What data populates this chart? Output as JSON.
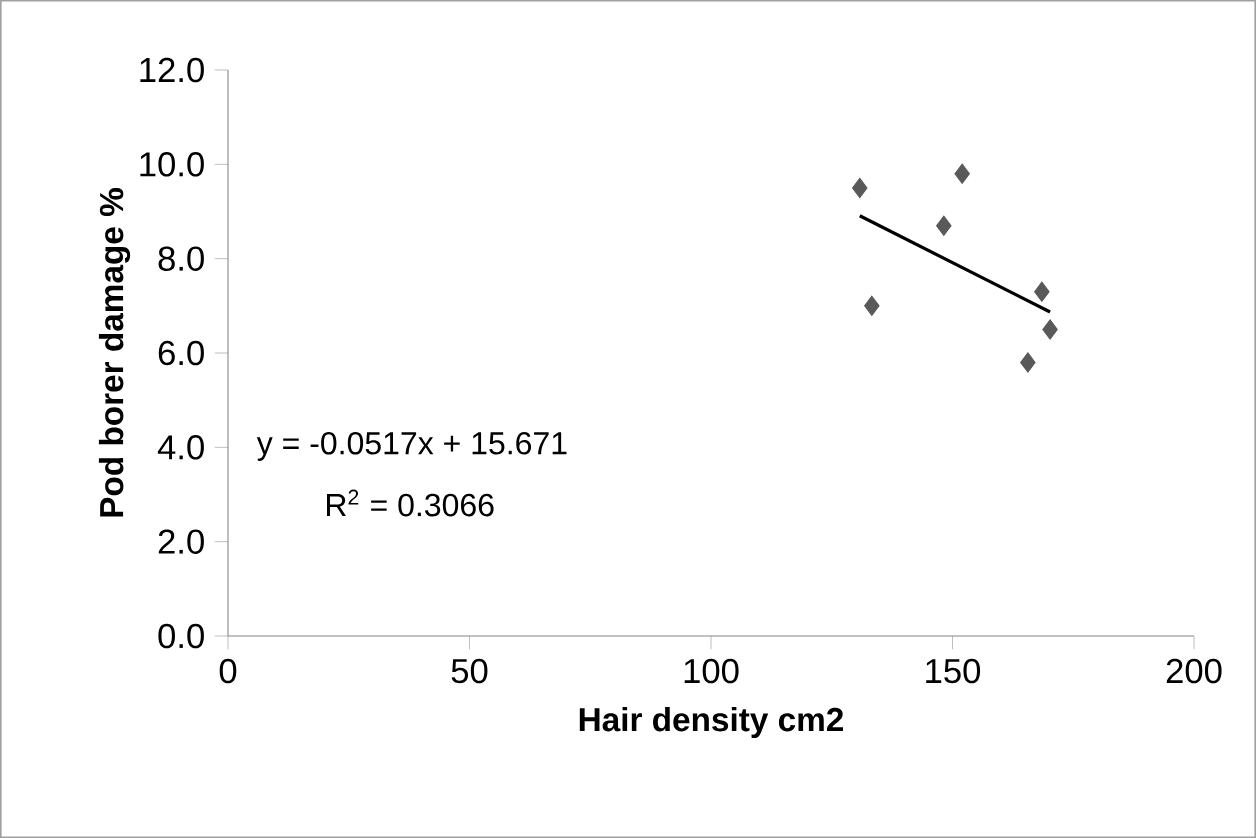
{
  "chart_data": {
    "type": "scatter",
    "xlabel": "Hair density cm2",
    "ylabel": "Pod borer damage %",
    "xlim": [
      0,
      200
    ],
    "ylim": [
      0,
      12
    ],
    "xticks": [
      0,
      50,
      100,
      150,
      200
    ],
    "yticks": [
      {
        "value": 0,
        "label": "0.0"
      },
      {
        "value": 2,
        "label": "2.0"
      },
      {
        "value": 4,
        "label": "4.0"
      },
      {
        "value": 6,
        "label": "6.0"
      },
      {
        "value": 8,
        "label": "8.0"
      },
      {
        "value": 10,
        "label": "10.0"
      },
      {
        "value": 12,
        "label": "12.0"
      }
    ],
    "series": [
      {
        "color": "#595959",
        "marker": "diamond",
        "x": [
          130.8,
          152,
          148.2,
          133.3,
          168.5,
          170.2,
          165.6
        ],
        "values": [
          9.5,
          9.8,
          8.7,
          7.0,
          7.3,
          6.5,
          5.8
        ]
      },
      {
        "type": "line",
        "color": "#000000",
        "marker": "none",
        "x": [
          130.8,
          170.2
        ],
        "values": [
          8.91,
          6.87
        ]
      }
    ],
    "annotations": [
      "y = -0.0517x + 15.671",
      "R$^{2}$ = 0.3066"
    ]
  }
}
